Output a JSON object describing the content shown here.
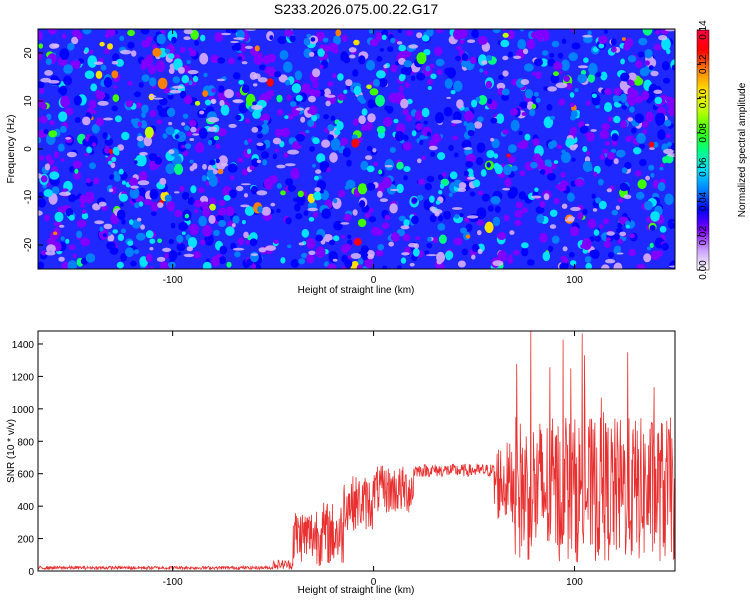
{
  "title": "S233.2026.075.00.22.G17",
  "chart_data": [
    {
      "type": "heatmap",
      "xlabel": "Height of straight line (km)",
      "ylabel": "Frequency (Hz)",
      "xlim": [
        -167,
        150
      ],
      "ylim": [
        -25,
        25
      ],
      "xticks": [
        -100,
        0,
        100
      ],
      "yticks": [
        -20,
        -10,
        0,
        10,
        20
      ],
      "colorbar": {
        "label": "Normalized spectral amplitude",
        "range": [
          0,
          0.14
        ],
        "ticks": [
          0.0,
          0.02,
          0.04,
          0.06,
          0.08,
          0.1,
          0.12,
          0.14
        ],
        "tick_labels": [
          "0.00",
          "0.02",
          "0.04",
          "0.06",
          "0.08",
          "0.10",
          "0.12",
          "0.14"
        ],
        "colormap": [
          "#ffffff",
          "#c8a0ff",
          "#8000ff",
          "#0000ff",
          "#0080ff",
          "#00e0ff",
          "#00ff80",
          "#40ff00",
          "#c0ff00",
          "#ffe000",
          "#ff8000",
          "#ff0000",
          "#ff0040"
        ]
      },
      "notes": "Dense speckle field: background amplitude ~0.02–0.05 with scattered peaks up to ~0.12"
    },
    {
      "type": "line",
      "xlabel": "Height of straight line (km)",
      "ylabel": "SNR (10 * v/v)",
      "xlim": [
        -167,
        150
      ],
      "ylim": [
        0,
        1480
      ],
      "xticks": [
        -100,
        0,
        100
      ],
      "yticks": [
        0,
        200,
        400,
        600,
        800,
        1000,
        1200,
        1400
      ],
      "series": [
        {
          "name": "SNR",
          "color": "#e83030",
          "segments": [
            {
              "x": [
                -167,
                -50
              ],
              "mean": 20,
              "noise": 10
            },
            {
              "x": [
                -50,
                -40
              ],
              "mean": 40,
              "noise": 30
            },
            {
              "x": [
                -40,
                -30
              ],
              "mean": 220,
              "noise": 170
            },
            {
              "x": [
                -30,
                -15
              ],
              "mean": 230,
              "noise": 200
            },
            {
              "x": [
                -15,
                0
              ],
              "mean": 420,
              "noise": 170
            },
            {
              "x": [
                0,
                20
              ],
              "mean": 500,
              "noise": 150
            },
            {
              "x": [
                20,
                60
              ],
              "mean": 620,
              "noise": 40
            },
            {
              "x": [
                60,
                70
              ],
              "mean": 550,
              "noise": 250
            },
            {
              "x": [
                70,
                150
              ],
              "mean": 500,
              "noise": 450
            }
          ],
          "peak_max": 1480
        }
      ]
    }
  ]
}
